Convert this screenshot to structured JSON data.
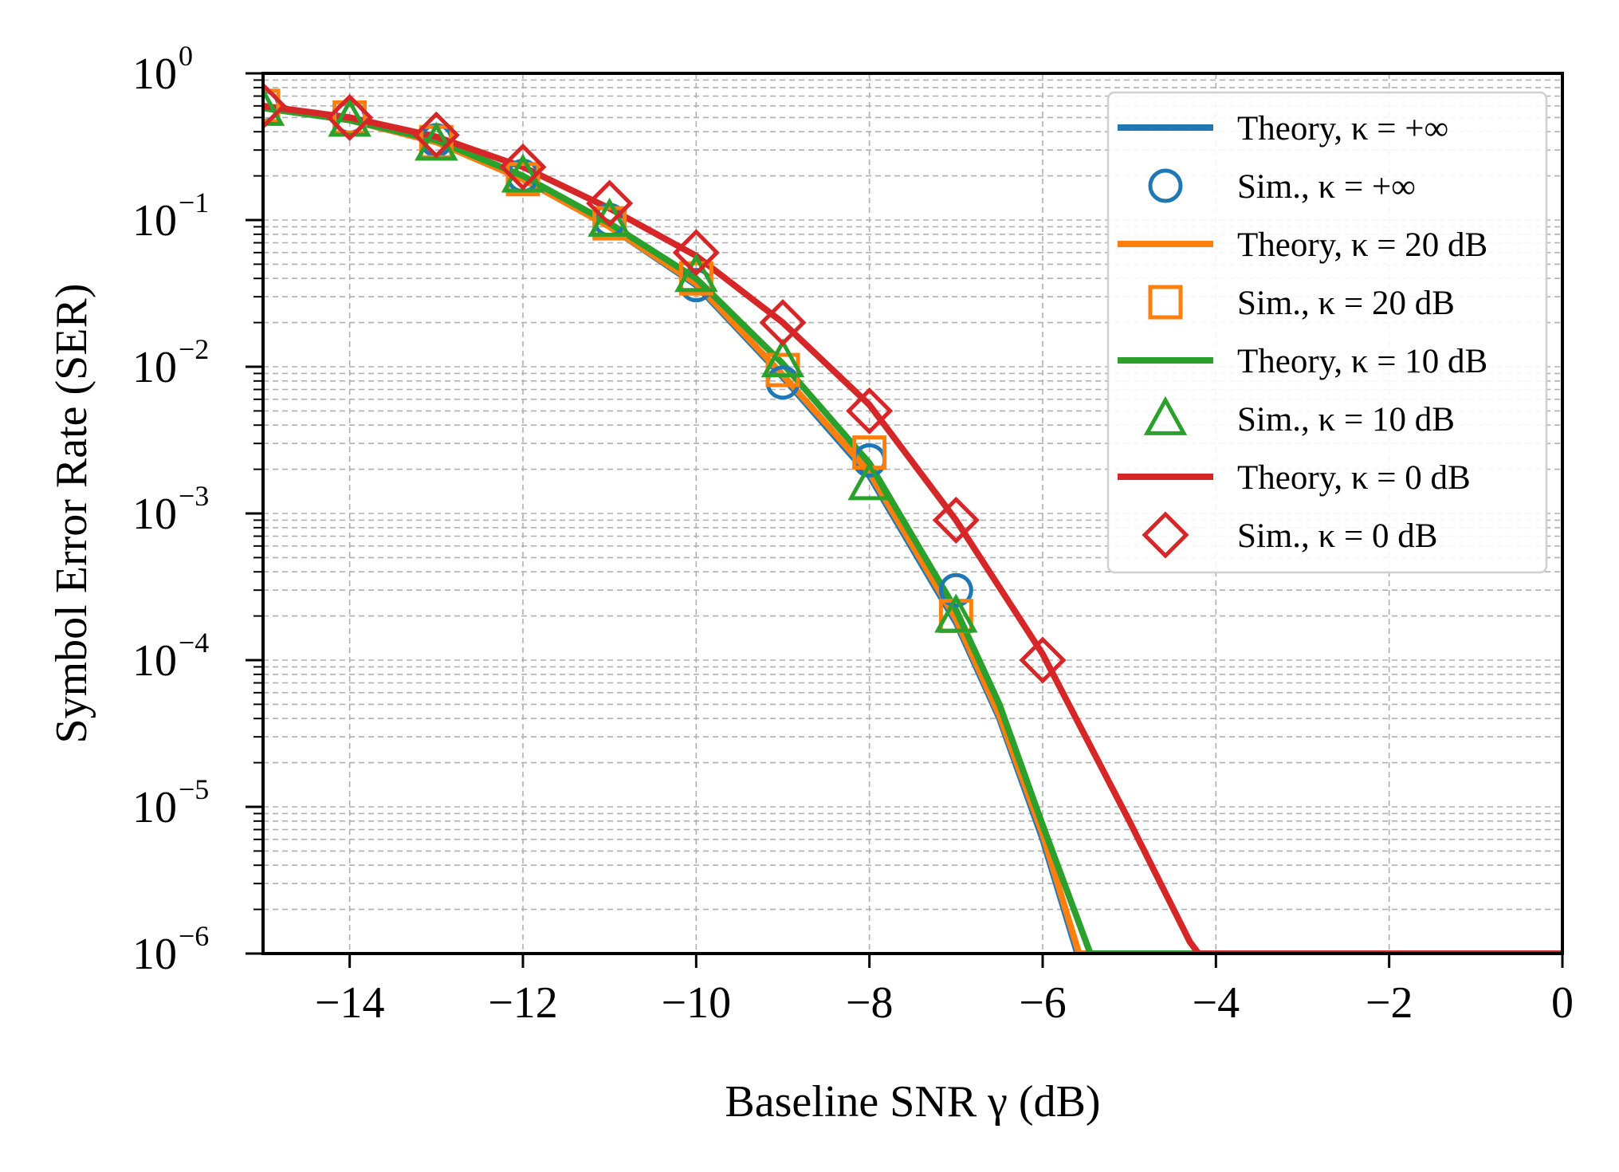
{
  "chart_data": {
    "type": "line",
    "title": "",
    "xlabel": "Baseline SNR γ (dB)",
    "ylabel": "Symbol Error Rate (SER)",
    "xlim": [
      -15,
      0
    ],
    "ylim": [
      1e-06,
      1
    ],
    "yscale": "log",
    "grid": true,
    "legend_position": "top-right",
    "x_ticks": [
      -14,
      -12,
      -10,
      -8,
      -6,
      -4,
      -2,
      0
    ],
    "x_tick_labels": [
      "−14",
      "−12",
      "−10",
      "−8",
      "−6",
      "−4",
      "−2",
      "0"
    ],
    "y_ticks": [
      {
        "value": 1,
        "base": "10",
        "exp": "0"
      },
      {
        "value": 0.1,
        "base": "10",
        "exp": "−1"
      },
      {
        "value": 0.01,
        "base": "10",
        "exp": "−2"
      },
      {
        "value": 0.001,
        "base": "10",
        "exp": "−3"
      },
      {
        "value": 0.0001,
        "base": "10",
        "exp": "−4"
      },
      {
        "value": 1e-05,
        "base": "10",
        "exp": "−5"
      },
      {
        "value": 1e-06,
        "base": "10",
        "exp": "−6"
      }
    ],
    "series": [
      {
        "name": "Theory, κ = +∞",
        "style": "line",
        "color": "#1f77b4",
        "x": [
          -15,
          -14,
          -13,
          -12,
          -11,
          -10,
          -9,
          -8,
          -7,
          -6.5,
          -6,
          -5.6,
          -5.5,
          0
        ],
        "y": [
          0.58,
          0.48,
          0.34,
          0.19,
          0.09,
          0.036,
          0.0085,
          0.0018,
          0.00018,
          4e-05,
          6e-06,
          1e-06,
          1e-06,
          1e-06
        ]
      },
      {
        "name": "Sim., κ = +∞",
        "style": "marker",
        "marker": "circle",
        "color": "#1f77b4",
        "x": [
          -15,
          -14,
          -13,
          -12,
          -11,
          -10,
          -9,
          -8,
          -7
        ],
        "y": [
          0.6,
          0.5,
          0.35,
          0.2,
          0.1,
          0.036,
          0.0078,
          0.0023,
          0.0003
        ]
      },
      {
        "name": "Theory, κ = 20 dB",
        "style": "line",
        "color": "#ff7f0e",
        "x": [
          -15,
          -14,
          -13,
          -12,
          -11,
          -10,
          -9,
          -8,
          -7,
          -6.5,
          -6,
          -5.58,
          -5.5,
          0
        ],
        "y": [
          0.58,
          0.48,
          0.34,
          0.19,
          0.09,
          0.037,
          0.0088,
          0.0019,
          0.00019,
          4.2e-05,
          6.5e-06,
          1e-06,
          1e-06,
          1e-06
        ]
      },
      {
        "name": "Sim., κ = 20 dB",
        "style": "marker",
        "marker": "square",
        "color": "#ff7f0e",
        "x": [
          -15,
          -14,
          -13,
          -12,
          -11,
          -10,
          -9,
          -8,
          -7
        ],
        "y": [
          0.6,
          0.5,
          0.34,
          0.19,
          0.095,
          0.04,
          0.0095,
          0.0026,
          0.0002
        ]
      },
      {
        "name": "Theory, κ = 10 dB",
        "style": "line",
        "color": "#2ca02c",
        "x": [
          -15,
          -14,
          -13,
          -12,
          -11,
          -10,
          -9,
          -8,
          -7,
          -6.5,
          -6,
          -5.45,
          -5.4,
          0
        ],
        "y": [
          0.58,
          0.48,
          0.35,
          0.2,
          0.095,
          0.04,
          0.0105,
          0.0022,
          0.00022,
          5e-05,
          7.5e-06,
          1e-06,
          1e-06,
          1e-06
        ]
      },
      {
        "name": "Sim., κ = 10 dB",
        "style": "marker",
        "marker": "triangle",
        "color": "#2ca02c",
        "x": [
          -15,
          -14,
          -13,
          -12,
          -11,
          -10,
          -9,
          -8,
          -7
        ],
        "y": [
          0.57,
          0.48,
          0.33,
          0.2,
          0.1,
          0.042,
          0.011,
          0.0016,
          0.0002
        ]
      },
      {
        "name": "Theory, κ = 0 dB",
        "style": "line",
        "color": "#d62728",
        "x": [
          -15,
          -14,
          -13,
          -12,
          -11,
          -10,
          -9,
          -8,
          -7,
          -6,
          -5,
          -4.3,
          -4.2,
          0
        ],
        "y": [
          0.6,
          0.5,
          0.37,
          0.23,
          0.12,
          0.057,
          0.02,
          0.0055,
          0.0009,
          0.00011,
          8e-06,
          1.2e-06,
          1e-06,
          1e-06
        ]
      },
      {
        "name": "Sim., κ = 0 dB",
        "style": "marker",
        "marker": "diamond",
        "color": "#d62728",
        "x": [
          -15,
          -14,
          -13,
          -12,
          -11,
          -10,
          -9,
          -8,
          -7,
          -6
        ],
        "y": [
          0.6,
          0.5,
          0.38,
          0.23,
          0.13,
          0.06,
          0.02,
          0.005,
          0.0009,
          0.0001
        ]
      }
    ]
  }
}
